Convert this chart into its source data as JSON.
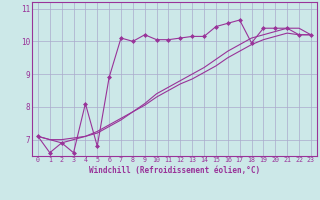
{
  "xlabel": "Windchill (Refroidissement éolien,°C)",
  "background_color": "#cce8e8",
  "grid_color": "#aaaacc",
  "line_color": "#993399",
  "x_ticks": [
    0,
    1,
    2,
    3,
    4,
    5,
    6,
    7,
    8,
    9,
    10,
    11,
    12,
    13,
    14,
    15,
    16,
    17,
    18,
    19,
    20,
    21,
    22,
    23
  ],
  "ylim": [
    6.5,
    11.2
  ],
  "xlim": [
    -0.5,
    23.5
  ],
  "y_ticks": [
    7,
    8,
    9,
    10,
    11
  ],
  "series1_x": [
    0,
    1,
    2,
    3,
    4,
    5,
    6,
    7,
    8,
    9,
    10,
    11,
    12,
    13,
    14,
    15,
    16,
    17,
    18,
    19,
    20,
    21,
    22,
    23
  ],
  "series1_y": [
    7.1,
    6.6,
    6.9,
    6.6,
    8.1,
    6.8,
    8.9,
    10.1,
    10.0,
    10.2,
    10.05,
    10.05,
    10.1,
    10.15,
    10.15,
    10.45,
    10.55,
    10.65,
    9.95,
    10.4,
    10.4,
    10.4,
    10.2,
    10.2
  ],
  "series2_x": [
    0,
    1,
    2,
    3,
    4,
    5,
    6,
    7,
    8,
    9,
    10,
    11,
    12,
    13,
    14,
    15,
    16,
    17,
    18,
    19,
    20,
    21,
    22,
    23
  ],
  "series2_y": [
    7.1,
    7.0,
    6.9,
    7.0,
    7.1,
    7.25,
    7.45,
    7.65,
    7.85,
    8.05,
    8.3,
    8.5,
    8.7,
    8.85,
    9.05,
    9.25,
    9.5,
    9.7,
    9.9,
    10.05,
    10.15,
    10.25,
    10.2,
    10.2
  ],
  "series3_x": [
    0,
    1,
    2,
    3,
    4,
    5,
    6,
    7,
    8,
    9,
    10,
    11,
    12,
    13,
    14,
    15,
    16,
    17,
    18,
    19,
    20,
    21,
    22,
    23
  ],
  "series3_y": [
    7.1,
    7.0,
    7.0,
    7.05,
    7.1,
    7.2,
    7.4,
    7.6,
    7.85,
    8.1,
    8.4,
    8.6,
    8.8,
    9.0,
    9.2,
    9.45,
    9.7,
    9.9,
    10.1,
    10.2,
    10.3,
    10.4,
    10.4,
    10.2
  ],
  "marker": "D",
  "markersize": 2.0,
  "linewidth": 0.8,
  "xlabel_fontsize": 5.5,
  "tick_fontsize": 4.8,
  "ytick_fontsize": 5.5
}
